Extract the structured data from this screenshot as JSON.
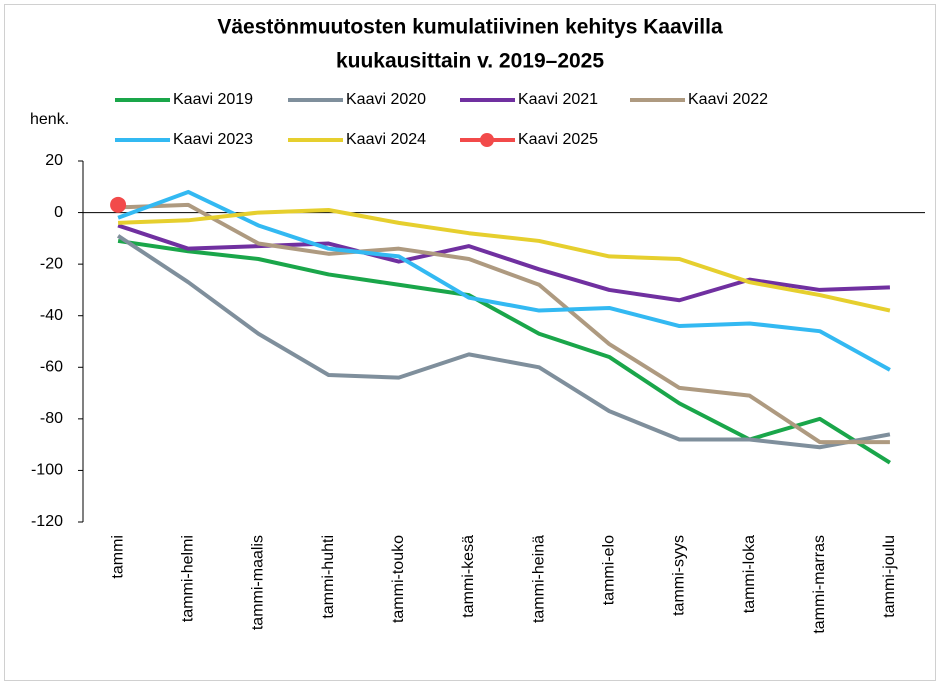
{
  "chart_data": {
    "type": "line",
    "title": [
      "Väestönmuutosten kumulatiivinen kehitys Kaavilla",
      "kuukausittain v. 2019–2025"
    ],
    "y_label": "henk.",
    "categories": [
      "tammi",
      "tammi-helmi",
      "tammi-maalis",
      "tammi-huhti",
      "tammi-touko",
      "tammi-kesä",
      "tammi-heinä",
      "tammi-elo",
      "tammi-syys",
      "tammi-loka",
      "tammi-marras",
      "tammi-joulu"
    ],
    "series": [
      {
        "name": "Kaavi 2019",
        "color": "#1aa64a",
        "values": [
          -11,
          -15,
          -18,
          -24,
          -28,
          -32,
          -47,
          -56,
          -74,
          -88,
          -80,
          -97
        ]
      },
      {
        "name": "Kaavi 2020",
        "color": "#7f8f9c",
        "values": [
          -9,
          -27,
          -47,
          -63,
          -64,
          -55,
          -60,
          -77,
          -88,
          -88,
          -91,
          -86
        ]
      },
      {
        "name": "Kaavi 2021",
        "color": "#7030a0",
        "values": [
          -5,
          -14,
          -13,
          -12,
          -19,
          -13,
          -22,
          -30,
          -34,
          -26,
          -30,
          -29
        ]
      },
      {
        "name": "Kaavi 2022",
        "color": "#ae9a80",
        "values": [
          2,
          3,
          -12,
          -16,
          -14,
          -18,
          -28,
          -51,
          -68,
          -71,
          -89,
          -89
        ]
      },
      {
        "name": "Kaavi 2023",
        "color": "#33b9f2",
        "values": [
          -2,
          8,
          -5,
          -14,
          -17,
          -33,
          -38,
          -37,
          -44,
          -43,
          -46,
          -61
        ]
      },
      {
        "name": "Kaavi 2024",
        "color": "#e6cf2e",
        "values": [
          -4,
          -3,
          0,
          1,
          -4,
          -8,
          -11,
          -17,
          -18,
          -27,
          -32,
          -38
        ]
      },
      {
        "name": "Kaavi 2025",
        "color": "#f24a4a",
        "marker": true,
        "values": [
          3,
          null,
          null,
          null,
          null,
          null,
          null,
          null,
          null,
          null,
          null,
          null
        ]
      }
    ],
    "ylim": [
      -120,
      20
    ],
    "yticks": [
      -120,
      -100,
      -80,
      -60,
      -40,
      -20,
      0,
      20
    ],
    "grid": false,
    "legend": "top"
  }
}
